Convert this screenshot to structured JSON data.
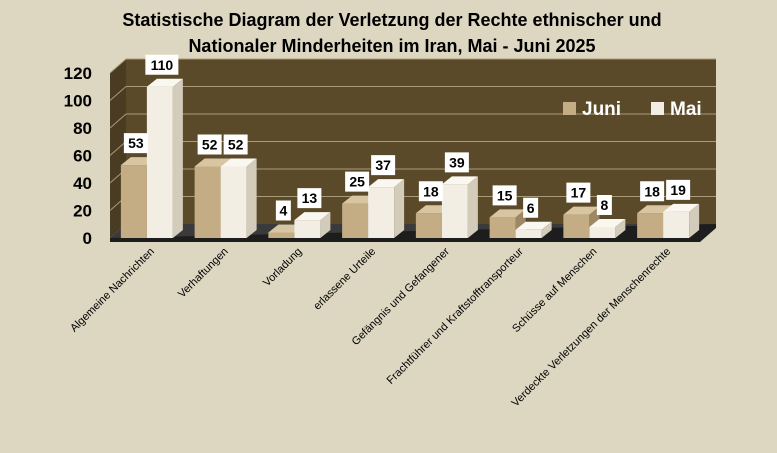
{
  "chart_data": {
    "type": "bar",
    "title_lines": [
      "Statistische Diagram der Verletzung der Rechte ethnischer und",
      "Nationaler Minderheiten im Iran, Mai - Juni 2025"
    ],
    "categories": [
      "Algemeine Nachrichten",
      "Verhaftungen",
      "Vorladung",
      "erlassene Urteile",
      "Gefängnis und Gefangener",
      "Frachtführer und Kraftstofftransporteur",
      "Schüsse auf Menschen",
      "Verdeckte Verletzungen der Menschenrechte"
    ],
    "series": [
      {
        "name": "Juni",
        "values": [
          53,
          52,
          4,
          25,
          18,
          15,
          17,
          18
        ]
      },
      {
        "name": "Mai",
        "values": [
          110,
          52,
          13,
          37,
          39,
          6,
          8,
          19
        ]
      }
    ],
    "yticks": [
      0,
      20,
      40,
      60,
      80,
      100,
      120
    ],
    "ylim": [
      0,
      120
    ],
    "legend_position": "top-right",
    "colors": {
      "page_bg": "#ddd7c1",
      "back_wall": "#5b4a2a",
      "side_wall": "#4a3c22",
      "floor_top": "#3a3a3a",
      "floor_front": "#1d1d1d",
      "grid": "#a99a78",
      "juni_front": "#c4ad85",
      "juni_top": "#d8c6a2",
      "juni_side": "#9e8864",
      "mai_front": "#f3eee3",
      "mai_top": "#faf7f0",
      "mai_side": "#d3ccbb",
      "label_bg": "#ffffff"
    }
  }
}
